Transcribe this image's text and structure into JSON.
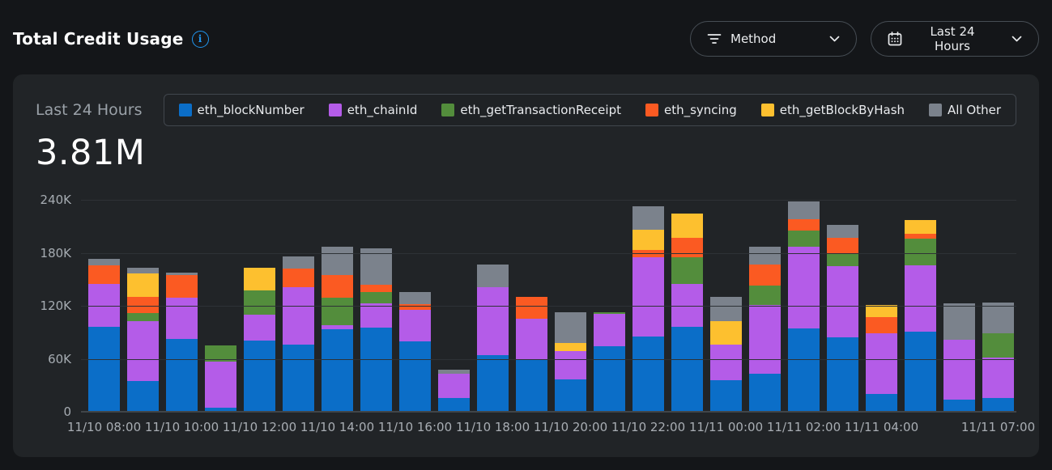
{
  "theme": {
    "page_bg": "#141619",
    "card_bg": "#212427",
    "accent_blue": "#2196ef"
  },
  "header": {
    "title": "Total Credit Usage",
    "method_dropdown": {
      "label": "Method"
    },
    "range_dropdown": {
      "label": "Last 24 Hours"
    }
  },
  "summary": {
    "period_label": "Last 24 Hours",
    "total_label": "3.81M"
  },
  "chart_data": {
    "type": "bar",
    "stacked": true,
    "title": "Total Credit Usage",
    "period": "Last 24 Hours",
    "total_display": "3.81M",
    "ylim": [
      0,
      240000
    ],
    "ytick_labels": [
      "240K",
      "180K",
      "120K",
      "60K",
      "0"
    ],
    "grid": "horizontal",
    "legend_position": "top",
    "values_unit": "thousands (K) of credits per hourly bar",
    "series": [
      {
        "name": "eth_blockNumber",
        "color": "#0b6ec8"
      },
      {
        "name": "eth_chainId",
        "color": "#b45ce8"
      },
      {
        "name": "eth_getTransactionReceipt",
        "color": "#538d3c"
      },
      {
        "name": "eth_syncing",
        "color": "#fb5a22"
      },
      {
        "name": "eth_getBlockByHash",
        "color": "#fdc02f"
      },
      {
        "name": "All Other",
        "color": "#7b828c"
      }
    ],
    "x_labels": [
      {
        "bar": 0,
        "label": "11/10 08:00"
      },
      {
        "bar": 2,
        "label": "11/10 10:00"
      },
      {
        "bar": 4,
        "label": "11/10 12:00"
      },
      {
        "bar": 6,
        "label": "11/10 14:00"
      },
      {
        "bar": 8,
        "label": "11/10 16:00"
      },
      {
        "bar": 10,
        "label": "11/10 18:00"
      },
      {
        "bar": 12,
        "label": "11/10 20:00"
      },
      {
        "bar": 14,
        "label": "11/10 22:00"
      },
      {
        "bar": 16,
        "label": "11/11 00:00"
      },
      {
        "bar": 18,
        "label": "11/11 02:00"
      },
      {
        "bar": 20,
        "label": "11/11 04:00"
      },
      {
        "bar": 23,
        "label": "11/11 07:00"
      }
    ],
    "bars": [
      [
        96,
        49,
        0,
        21,
        0,
        7
      ],
      [
        35,
        68,
        9,
        18,
        27,
        6
      ],
      [
        82,
        47,
        0,
        26,
        0,
        3
      ],
      [
        5,
        52,
        18,
        0,
        0,
        0
      ],
      [
        81,
        29,
        27,
        0,
        26,
        0
      ],
      [
        76,
        65,
        0,
        21,
        0,
        14
      ],
      [
        93,
        5,
        31,
        26,
        0,
        32
      ],
      [
        95,
        28,
        13,
        8,
        0,
        41
      ],
      [
        80,
        35,
        0,
        7,
        0,
        14
      ],
      [
        16,
        27,
        0,
        0,
        0,
        5
      ],
      [
        64,
        77,
        0,
        0,
        0,
        26
      ],
      [
        60,
        45,
        0,
        25,
        0,
        0
      ],
      [
        37,
        32,
        0,
        0,
        9,
        35
      ],
      [
        74,
        37,
        2,
        0,
        0,
        0
      ],
      [
        85,
        90,
        0,
        8,
        23,
        27
      ],
      [
        96,
        49,
        30,
        22,
        27,
        0
      ],
      [
        36,
        40,
        0,
        0,
        27,
        27
      ],
      [
        43,
        78,
        22,
        24,
        0,
        20
      ],
      [
        94,
        93,
        18,
        13,
        0,
        20
      ],
      [
        84,
        81,
        14,
        18,
        0,
        15
      ],
      [
        20,
        69,
        0,
        18,
        14,
        0
      ],
      [
        91,
        75,
        30,
        6,
        15,
        0
      ],
      [
        14,
        68,
        0,
        0,
        0,
        41
      ],
      [
        16,
        45,
        28,
        0,
        0,
        35
      ]
    ]
  }
}
